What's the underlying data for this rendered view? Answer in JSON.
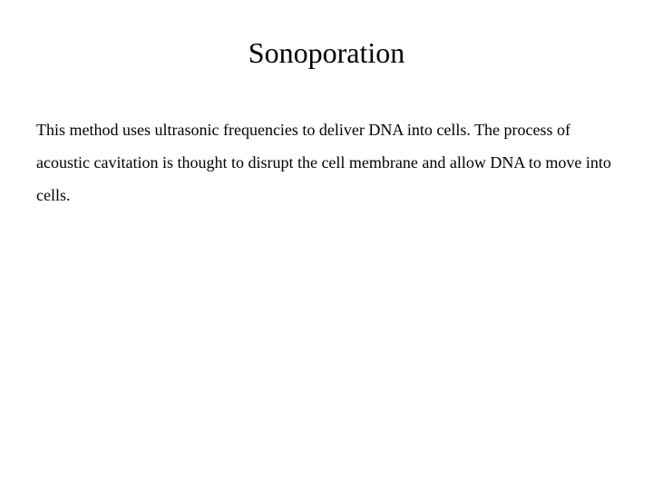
{
  "slide": {
    "title": "Sonoporation",
    "body": "This method uses ultrasonic frequencies to deliver DNA into cells. The process of acoustic cavitation is thought to disrupt the cell membrane and allow DNA to move into cells.",
    "title_fontsize": 32,
    "body_fontsize": 18,
    "text_color": "#000000",
    "background_color": "#ffffff",
    "font_family": "Times New Roman"
  }
}
